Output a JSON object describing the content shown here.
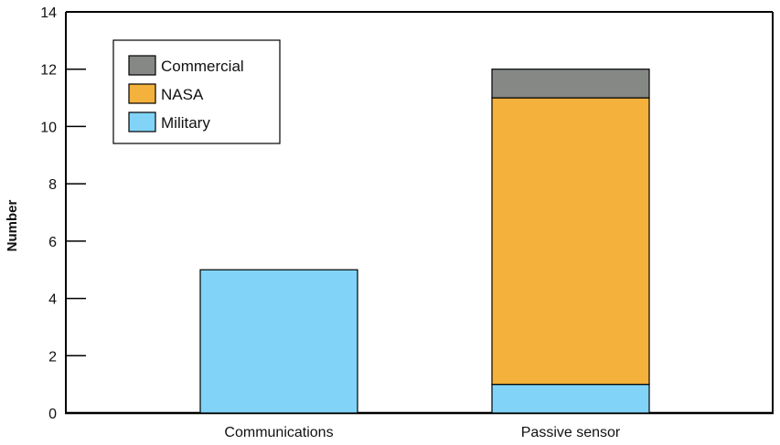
{
  "chart_data": {
    "type": "bar",
    "stacked": true,
    "categories": [
      "Communications",
      "Passive sensor"
    ],
    "series": [
      {
        "name": "Military",
        "values": [
          5,
          1
        ],
        "color": "#81D4F7"
      },
      {
        "name": "NASA",
        "values": [
          0,
          10
        ],
        "color": "#F4B13B"
      },
      {
        "name": "Commercial",
        "values": [
          0,
          1
        ],
        "color": "#858885"
      }
    ],
    "legend_order": [
      "Commercial",
      "NASA",
      "Military"
    ],
    "ylabel": "Number",
    "xlabel": "",
    "ylim": [
      0,
      14
    ],
    "yticks": [
      0,
      2,
      4,
      6,
      8,
      10,
      12,
      14
    ],
    "grid": false,
    "legend_position": "top-left"
  }
}
